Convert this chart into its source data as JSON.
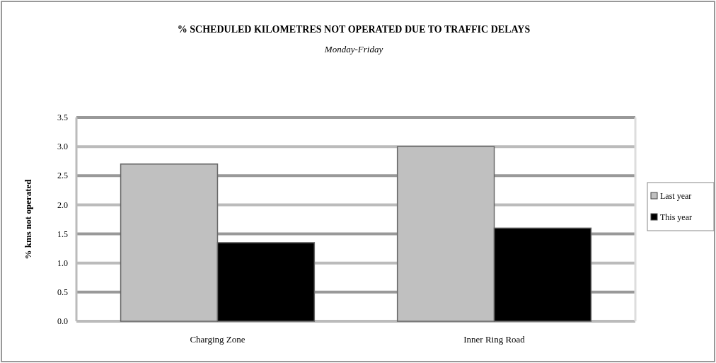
{
  "chart_data": {
    "type": "bar",
    "title": "% SCHEDULED KILOMETRES NOT OPERATED DUE TO TRAFFIC DELAYS",
    "subtitle": "Monday-Friday",
    "ylabel": "% kms not operated",
    "categories": [
      "Charging Zone",
      "Inner Ring Road"
    ],
    "series": [
      {
        "name": "Last year",
        "color": "#c0c0c0",
        "values": [
          2.7,
          3.0
        ]
      },
      {
        "name": "This year",
        "color": "#000000",
        "values": [
          1.35,
          1.6
        ]
      }
    ],
    "ylim": [
      0,
      3.5
    ],
    "yticks": [
      {
        "value": 0,
        "label": "0.0"
      },
      {
        "value": 0.5,
        "label": "0.5"
      },
      {
        "value": 1,
        "label": "1.0"
      },
      {
        "value": 1.5,
        "label": "1.5"
      },
      {
        "value": 2,
        "label": "2.0"
      },
      {
        "value": 2.5,
        "label": "2.5"
      },
      {
        "value": 3,
        "label": "3.0"
      },
      {
        "value": 3.5,
        "label": "3.5"
      }
    ],
    "grid": "y",
    "legend": "right"
  }
}
